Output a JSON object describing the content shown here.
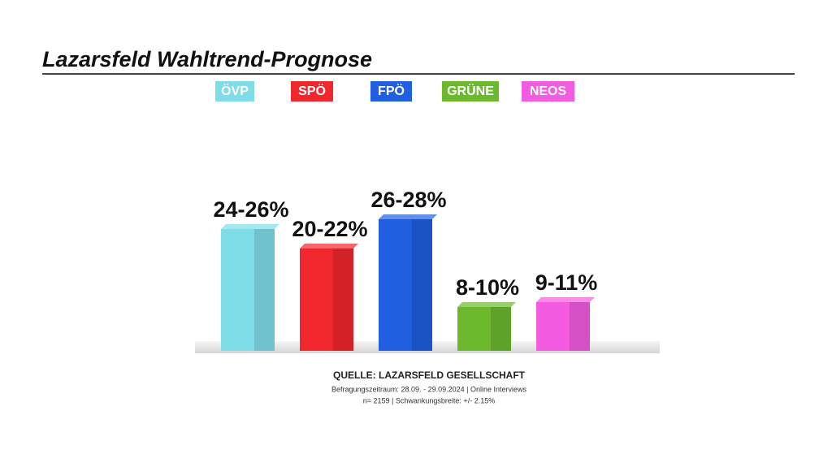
{
  "chart_data": {
    "type": "bar",
    "title": "Lazarsfeld Wahltrend-Prognose",
    "categories": [
      "ÖVP",
      "SPÖ",
      "FPÖ",
      "GRÜNE",
      "NEOS"
    ],
    "colors": [
      "#7fdde8",
      "#f0272d",
      "#1f5fe0",
      "#6db92e",
      "#f35ce0"
    ],
    "low": [
      24,
      20,
      26,
      8,
      9
    ],
    "high": [
      26,
      22,
      28,
      10,
      11
    ],
    "value_labels": [
      "24-26%",
      "20-22%",
      "26-28%",
      "8-10%",
      "9-11%"
    ],
    "source": "QUELLE: LAZARSFELD GESELLSCHAFT",
    "source_lines": [
      "Befragungszeitraum: 28.09. - 29.09.2024 | Online Interviews",
      "n= 2159 | Schwankungsbreite: +/- 2.15%"
    ]
  }
}
